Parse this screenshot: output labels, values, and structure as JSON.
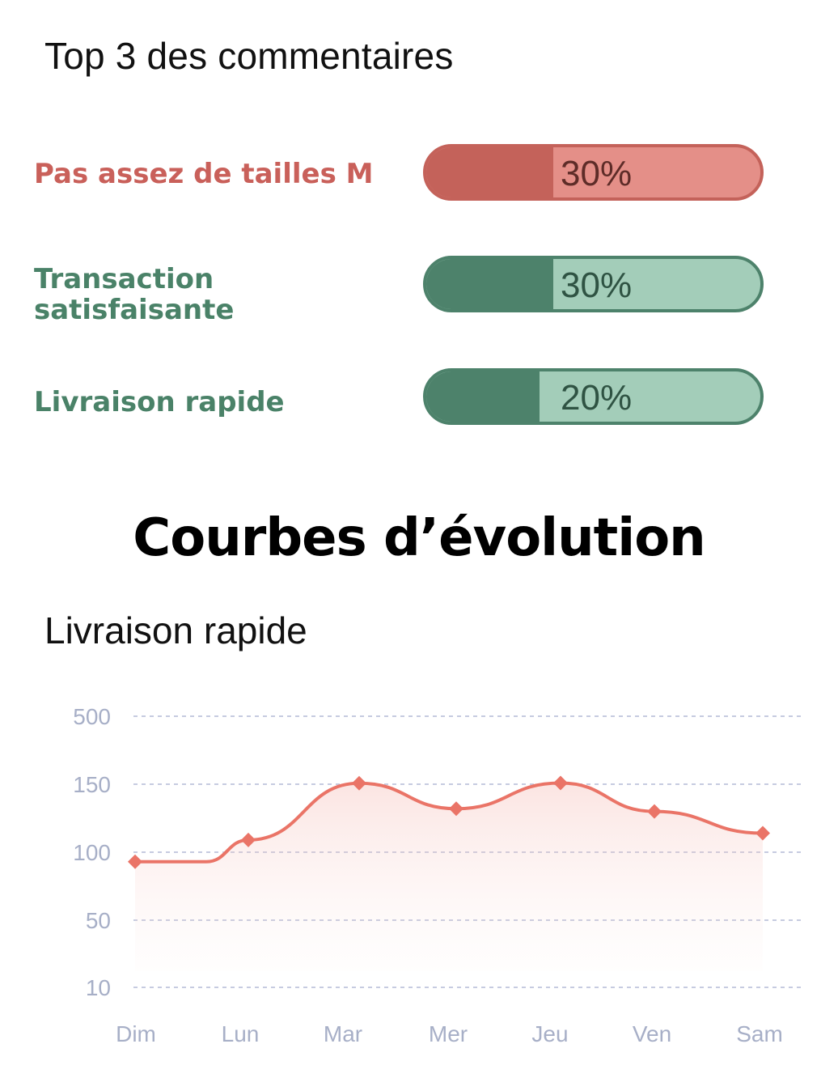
{
  "top_comments": {
    "title": "Top 3 des commentaires",
    "items": [
      {
        "label": "Pas assez de tailles M",
        "percent_text": "30%",
        "percent": 30,
        "style": "red"
      },
      {
        "label": "Transaction satisfaisante",
        "percent_text": "30%",
        "percent": 30,
        "style": "green"
      },
      {
        "label": "Livraison rapide",
        "percent_text": "20%",
        "percent": 20,
        "style": "green"
      }
    ]
  },
  "colors": {
    "red": "#c4625a",
    "red_light": "#e48f88",
    "green": "#4d826b",
    "green_light": "#a3cdb9",
    "line": "#ea7467"
  },
  "evolution": {
    "title": "Courbes d’évolution",
    "chart_title": "Livraison rapide"
  },
  "chart_data": {
    "type": "line",
    "title": "Livraison rapide",
    "categories": [
      "Dim",
      "Lun",
      "Mar",
      "Mer",
      "Jeu",
      "Ven",
      "Sam"
    ],
    "y_ticks": [
      "500",
      "150",
      "100",
      "50",
      "10"
    ],
    "values": [
      93,
      109,
      155,
      132,
      156,
      130,
      114
    ],
    "grid": true,
    "area_fill": true
  }
}
